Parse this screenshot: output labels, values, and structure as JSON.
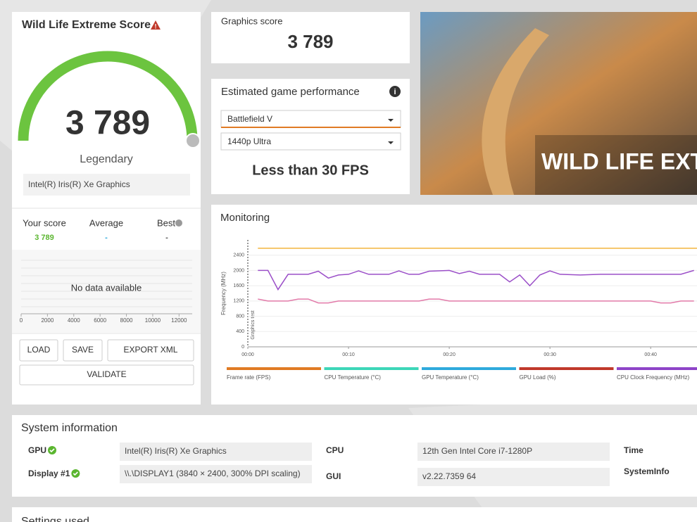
{
  "score_panel": {
    "title": "Wild Life Extreme Score",
    "score": "3 789",
    "rank": "Legendary",
    "device": "Intel(R) Iris(R) Xe Graphics",
    "comparison": {
      "headers": [
        "Your score",
        "Average",
        "Best"
      ],
      "values": [
        "3 789",
        "-",
        "-"
      ]
    },
    "distribution": {
      "message": "No data available",
      "xlim": [
        0,
        13000
      ],
      "xticks": [
        0,
        2000,
        4000,
        6000,
        8000,
        10000,
        12000
      ]
    },
    "buttons": [
      "LOAD",
      "SAVE",
      "EXPORT XML",
      "VALIDATE"
    ]
  },
  "graphics_score": {
    "label": "Graphics score",
    "value": "3 789"
  },
  "game_performance": {
    "title": "Estimated game performance",
    "game": "Battlefield V",
    "preset": "1440p Ultra",
    "result": "Less than 30 FPS"
  },
  "banner": {
    "title": "WILD LIFE EXT"
  },
  "monitoring": {
    "title": "Monitoring",
    "type": "line",
    "y_label": "Frequency (MHz)",
    "marker_label": "Graphics test",
    "ylim": [
      0,
      2800
    ],
    "yticks": [
      0,
      400,
      800,
      1200,
      1600,
      2000,
      2400
    ],
    "xlim": [
      0,
      44.6
    ],
    "xticks": [
      {
        "value": 0,
        "label": "00:00"
      },
      {
        "value": 10,
        "label": "00:10"
      },
      {
        "value": 20,
        "label": "00:20"
      },
      {
        "value": 30,
        "label": "00:30"
      },
      {
        "value": 40,
        "label": "00:40"
      }
    ],
    "grid": true,
    "series": [
      {
        "color": "#f2b43c",
        "x": [
          1,
          44.6
        ],
        "values": [
          2580,
          2580
        ]
      },
      {
        "color": "#9b4fc8",
        "x": [
          1,
          2,
          3,
          4,
          6,
          7,
          8,
          9,
          10,
          11,
          12,
          14,
          15,
          16,
          17,
          18,
          20,
          21,
          22,
          23,
          25,
          26,
          27,
          28,
          29,
          30,
          31,
          33,
          35,
          39,
          43,
          44.3
        ],
        "values": [
          2000,
          2000,
          1500,
          1900,
          1900,
          1980,
          1800,
          1880,
          1900,
          1990,
          1900,
          1900,
          1990,
          1900,
          1900,
          1980,
          2000,
          1920,
          1980,
          1900,
          1900,
          1700,
          1880,
          1600,
          1880,
          1990,
          1900,
          1880,
          1900,
          1900,
          1900,
          2000
        ]
      },
      {
        "color": "#e27aa9",
        "x": [
          1,
          2,
          4,
          5,
          6,
          7,
          8,
          9,
          17,
          18,
          19,
          20,
          40,
          41,
          42,
          43,
          44.3
        ],
        "values": [
          1250,
          1200,
          1200,
          1250,
          1250,
          1150,
          1150,
          1200,
          1200,
          1250,
          1250,
          1200,
          1200,
          1150,
          1150,
          1200,
          1200
        ]
      }
    ],
    "legend": [
      {
        "name": "Frame rate (FPS)",
        "color": "#e07b24"
      },
      {
        "name": "CPU Temperature (°C)",
        "color": "#3dd6b8"
      },
      {
        "name": "GPU Temperature (°C)",
        "color": "#2eaadc"
      },
      {
        "name": "GPU Load (%)",
        "color": "#c0392b"
      },
      {
        "name": "CPU Clock Frequency (MHz)",
        "color": "#8e44c8"
      }
    ]
  },
  "system_info": {
    "title": "System information",
    "items": [
      {
        "label": "GPU",
        "value": "Intel(R) Iris(R) Xe Graphics",
        "ok": true
      },
      {
        "label": "Display #1",
        "value": "\\\\.\\DISPLAY1 (3840 × 2400, 300% DPI scaling)",
        "ok": true
      },
      {
        "label": "CPU",
        "value": "12th Gen Intel Core i7-1280P"
      },
      {
        "label": "GUI",
        "value": "v2.22.7359 64"
      },
      {
        "label": "Time"
      },
      {
        "label": "SystemInfo"
      }
    ]
  },
  "settings": {
    "title": "Settings used"
  }
}
